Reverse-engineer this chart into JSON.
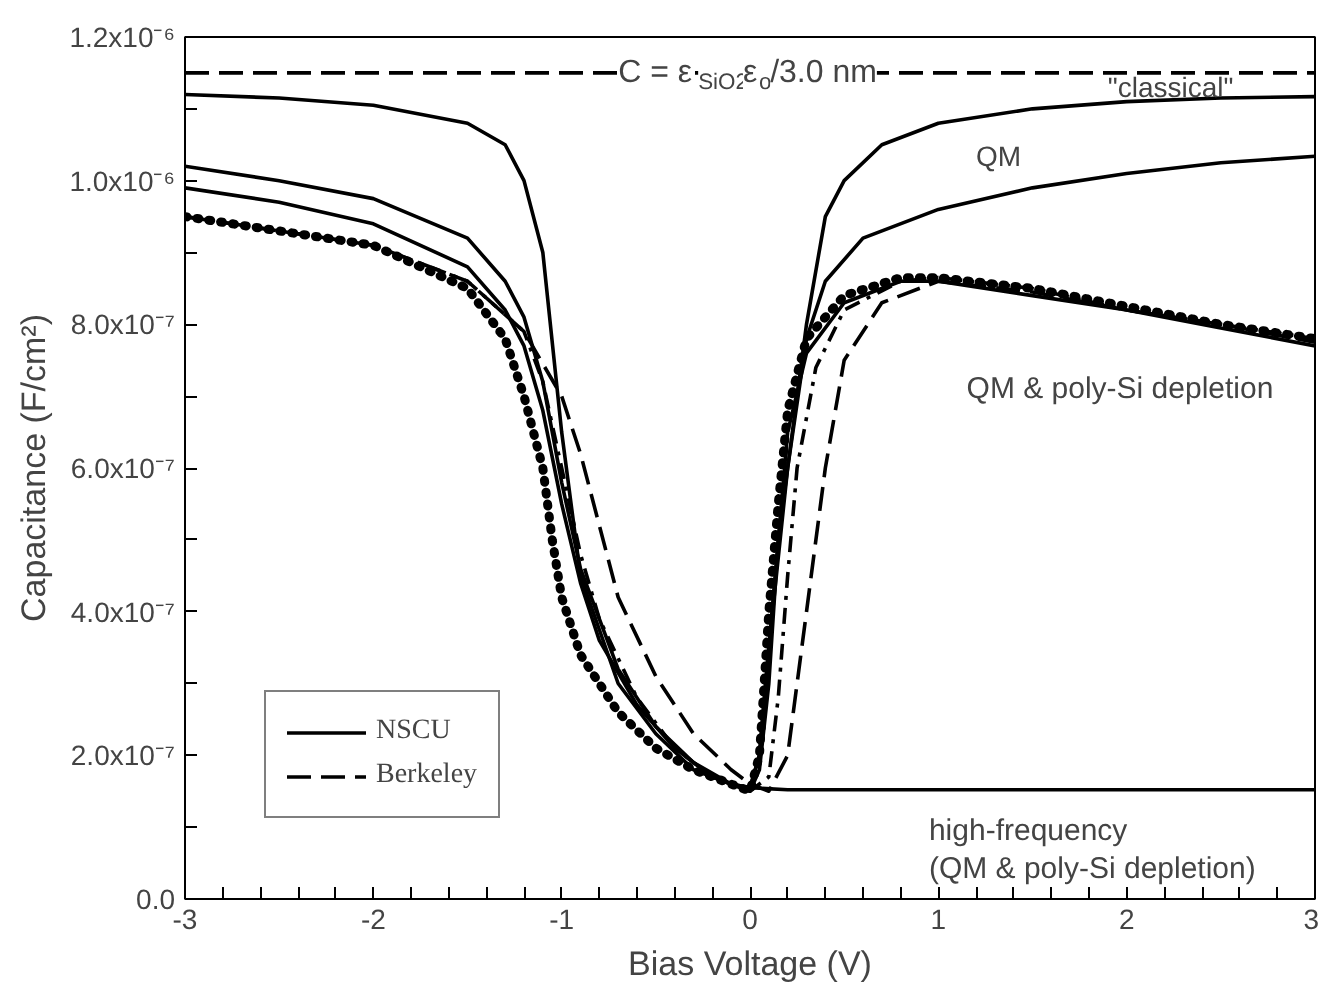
{
  "chart_data": {
    "type": "line",
    "xlabel": "Bias Voltage (V)",
    "ylabel": "Capacitance (F/cm²)",
    "xlim": [
      -3,
      3
    ],
    "ylim": [
      0,
      1.2e-06
    ],
    "xticks": [
      -3,
      {
        "value": -2.8,
        "label": null
      },
      {
        "value": -2.6,
        "label": null
      },
      {
        "value": -2.4,
        "label": null
      },
      {
        "value": -2.2,
        "label": null
      },
      -2,
      {
        "value": -1.8,
        "label": null
      },
      {
        "value": -1.6,
        "label": null
      },
      {
        "value": -1.4,
        "label": null
      },
      {
        "value": -1.2,
        "label": null
      },
      -1,
      {
        "value": -0.8,
        "label": null
      },
      {
        "value": -0.6,
        "label": null
      },
      {
        "value": -0.4,
        "label": null
      },
      {
        "value": -0.2,
        "label": null
      },
      0,
      {
        "value": 0.2,
        "label": null
      },
      {
        "value": 0.4,
        "label": null
      },
      {
        "value": 0.6,
        "label": null
      },
      {
        "value": 0.8,
        "label": null
      },
      1,
      {
        "value": 1.2,
        "label": null
      },
      {
        "value": 1.4,
        "label": null
      },
      {
        "value": 1.6,
        "label": null
      },
      {
        "value": 1.8,
        "label": null
      },
      2,
      {
        "value": 2.2,
        "label": null
      },
      {
        "value": 2.4,
        "label": null
      },
      {
        "value": 2.6,
        "label": null
      },
      {
        "value": 2.8,
        "label": null
      },
      3
    ],
    "yticks": [
      {
        "value": 0,
        "label": "0.0"
      },
      {
        "value": 1e-07,
        "label": null
      },
      {
        "value": 2e-07,
        "label": "2.0x10⁻⁷"
      },
      {
        "value": 3e-07,
        "label": null
      },
      {
        "value": 4e-07,
        "label": "4.0x10⁻⁷"
      },
      {
        "value": 5e-07,
        "label": null
      },
      {
        "value": 6e-07,
        "label": "6.0x10⁻⁷"
      },
      {
        "value": 7e-07,
        "label": null
      },
      {
        "value": 8e-07,
        "label": "8.0x10⁻⁷"
      },
      {
        "value": 9e-07,
        "label": null
      },
      {
        "value": 1e-06,
        "label": "1.0x10⁻⁶"
      },
      {
        "value": 1.1e-06,
        "label": null
      },
      {
        "value": 1.2e-06,
        "label": "1.2x10⁻⁶"
      }
    ],
    "grid": false,
    "legend": "bottom left",
    "series": [
      {
        "color": "#000000",
        "line_style": "solid",
        "x": [
          -3,
          -2.5,
          -2,
          -1.5,
          -1.3,
          -1.2,
          -1.1,
          -1.0,
          -0.9,
          -0.7,
          -0.5,
          -0.3,
          -0.1,
          0,
          0.05,
          0.1,
          0.15,
          0.2,
          0.3,
          0.4,
          0.5,
          0.7,
          1.0,
          1.5,
          2,
          2.5,
          3
        ],
        "values": [
          1.12e-06,
          1.115e-06,
          1.105e-06,
          1.08e-06,
          1.05e-06,
          1e-06,
          9e-07,
          6.5e-07,
          4.5e-07,
          3e-07,
          2.3e-07,
          1.8e-07,
          1.6e-07,
          1.55e-07,
          2e-07,
          3.5e-07,
          5e-07,
          6e-07,
          8e-07,
          9.5e-07,
          1e-06,
          1.05e-06,
          1.08e-06,
          1.1e-06,
          1.11e-06,
          1.115e-06,
          1.117e-06
        ]
      },
      {
        "color": "#000000",
        "line_style": "solid",
        "x": [
          -3,
          -2.5,
          -2,
          -1.5,
          -1.3,
          -1.2,
          -1.1,
          -1.0,
          -0.9,
          -0.7,
          -0.5,
          -0.3,
          -0.1,
          0,
          0.05,
          0.1,
          0.2,
          0.3,
          0.4,
          0.6,
          1.0,
          1.5,
          2,
          2.5,
          3
        ],
        "values": [
          1.02e-06,
          1e-06,
          9.75e-07,
          9.2e-07,
          8.6e-07,
          8.1e-07,
          7.2e-07,
          5.8e-07,
          4.6e-07,
          3.2e-07,
          2.4e-07,
          1.9e-07,
          1.6e-07,
          1.55e-07,
          2e-07,
          3.5e-07,
          6e-07,
          7.8e-07,
          8.6e-07,
          9.2e-07,
          9.6e-07,
          9.9e-07,
          1.01e-06,
          1.025e-06,
          1.034e-06
        ]
      },
      {
        "name": "NSCU",
        "color": "#000000",
        "line_style": "solid",
        "x": [
          -3,
          -2.5,
          -2,
          -1.5,
          -1.3,
          -1.2,
          -1.1,
          -1.0,
          -0.9,
          -0.8,
          -0.6,
          -0.4,
          -0.2,
          0,
          0.05,
          0.1,
          0.15,
          0.2,
          0.3,
          0.5,
          0.8,
          1.0,
          1.5,
          2,
          2.5,
          3
        ],
        "values": [
          9.9e-07,
          9.7e-07,
          9.4e-07,
          8.8e-07,
          8.2e-07,
          7.7e-07,
          6.8e-07,
          5.5e-07,
          4.4e-07,
          3.6e-07,
          2.7e-07,
          2.1e-07,
          1.7e-07,
          1.5e-07,
          1.8e-07,
          3e-07,
          5e-07,
          6.5e-07,
          7.6e-07,
          8.3e-07,
          8.6e-07,
          8.6e-07,
          8.4e-07,
          8.2e-07,
          7.95e-07,
          7.7e-07
        ]
      },
      {
        "name": "Berkeley",
        "color": "#000000",
        "line_style": "dashed",
        "x": [
          -3,
          -2,
          -1.5,
          -1.2,
          -1.0,
          -0.9,
          -0.8,
          -0.7,
          -0.5,
          -0.3,
          -0.1,
          0,
          0.1,
          0.2,
          0.3,
          0.4,
          0.5,
          0.7,
          1.0,
          1.5,
          2,
          2.5,
          3
        ],
        "values": [
          9.5e-07,
          9.1e-07,
          8.6e-07,
          7.9e-07,
          7e-07,
          6.2e-07,
          5.2e-07,
          4.2e-07,
          3.1e-07,
          2.3e-07,
          1.8e-07,
          1.6e-07,
          1.5e-07,
          2e-07,
          4e-07,
          6e-07,
          7.5e-07,
          8.3e-07,
          8.6e-07,
          8.45e-07,
          8.2e-07,
          8e-07,
          7.75e-07
        ]
      },
      {
        "color": "#000000",
        "line_style": "dashdot",
        "x": [
          -3,
          -2,
          -1.5,
          -1.2,
          -1.1,
          -1.0,
          -0.9,
          -0.8,
          -0.6,
          -0.4,
          -0.2,
          0,
          0.1,
          0.15,
          0.2,
          0.25,
          0.35,
          0.5,
          0.8,
          1,
          1.5,
          2,
          2.5,
          3
        ],
        "values": [
          9.5e-07,
          9.1e-07,
          8.6e-07,
          7.9e-07,
          7.2e-07,
          6e-07,
          4.8e-07,
          3.9e-07,
          2.8e-07,
          2.1e-07,
          1.7e-07,
          1.5e-07,
          1.7e-07,
          2.8e-07,
          4.5e-07,
          6e-07,
          7.4e-07,
          8.2e-07,
          8.6e-07,
          8.65e-07,
          8.5e-07,
          8.2e-07,
          8e-07,
          7.8e-07
        ]
      },
      {
        "color": "#000000",
        "line_style": "dotted",
        "x": [
          -3,
          -2,
          -1.5,
          -1.3,
          -1.2,
          -1.1,
          -1.05,
          -1.0,
          -0.9,
          -0.7,
          -0.5,
          -0.3,
          0,
          0.05,
          0.1,
          0.15,
          0.2,
          0.3,
          0.5,
          0.8,
          1,
          1.5,
          2,
          2.5,
          3
        ],
        "values": [
          9.5e-07,
          9.1e-07,
          8.5e-07,
          7.8e-07,
          7e-07,
          6e-07,
          5e-07,
          4.2e-07,
          3.4e-07,
          2.6e-07,
          2.1e-07,
          1.8e-07,
          1.5e-07,
          2e-07,
          4e-07,
          5.5e-07,
          6.8e-07,
          7.8e-07,
          8.4e-07,
          8.65e-07,
          8.65e-07,
          8.5e-07,
          8.25e-07,
          8e-07,
          7.8e-07
        ]
      },
      {
        "color": "#000000",
        "line_style": "solid",
        "x": [
          0,
          0.2,
          3
        ],
        "values": [
          1.55e-07,
          1.52e-07,
          1.52e-07
        ]
      }
    ],
    "ref_lines": [
      {
        "axis": "y",
        "value": 1.15e-06,
        "label": "C = ε$_{SiO2}$ε$_{o}$/3.0 nm",
        "color": "#000000",
        "line_style": "dashed"
      }
    ],
    "annotations": [
      "\"classical\"",
      "QM",
      "QM & poly-Si depletion",
      "high-frequency\n(QM & poly-Si depletion)"
    ]
  }
}
